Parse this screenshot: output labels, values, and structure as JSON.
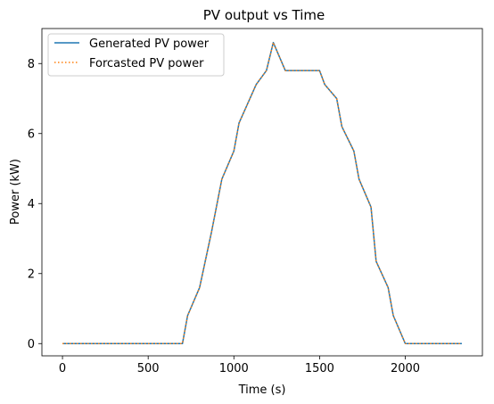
{
  "chart_data": {
    "type": "line",
    "title": "PV output vs Time",
    "xlabel": "Time (s)",
    "ylabel": "Power (kW)",
    "xlim": [
      -120,
      2450
    ],
    "ylim": [
      -0.35,
      9.0
    ],
    "xticks": [
      0,
      500,
      1000,
      1500,
      2000
    ],
    "yticks": [
      0,
      2,
      4,
      6,
      8
    ],
    "grid": false,
    "legend": "top-left",
    "series": [
      {
        "name": "Generated PV power",
        "color": "#1f77b4",
        "style": "solid",
        "x": [
          0,
          100,
          200,
          300,
          400,
          500,
          600,
          700,
          730,
          800,
          870,
          930,
          1000,
          1030,
          1130,
          1190,
          1230,
          1300,
          1400,
          1500,
          1530,
          1600,
          1630,
          1700,
          1730,
          1800,
          1830,
          1900,
          1930,
          2000,
          2100,
          2200,
          2330
        ],
        "y": [
          0,
          0,
          0,
          0,
          0,
          0,
          0,
          0,
          0.8,
          1.6,
          3.2,
          4.7,
          5.5,
          6.3,
          7.4,
          7.8,
          8.6,
          7.8,
          7.8,
          7.8,
          7.4,
          7.0,
          6.2,
          5.5,
          4.7,
          3.9,
          2.35,
          1.6,
          0.8,
          0,
          0,
          0,
          0
        ]
      },
      {
        "name": "Forcasted PV power",
        "color": "#ff7f0e",
        "style": "dotted",
        "x": [
          0,
          100,
          200,
          300,
          400,
          500,
          600,
          700,
          730,
          800,
          870,
          930,
          1000,
          1030,
          1130,
          1190,
          1230,
          1300,
          1400,
          1500,
          1530,
          1600,
          1630,
          1700,
          1730,
          1800,
          1830,
          1900,
          1930,
          2000,
          2100,
          2200,
          2330
        ],
        "y": [
          0,
          0,
          0,
          0,
          0,
          0,
          0,
          0,
          0.8,
          1.6,
          3.2,
          4.7,
          5.5,
          6.3,
          7.4,
          7.8,
          8.6,
          7.8,
          7.8,
          7.8,
          7.4,
          7.0,
          6.2,
          5.5,
          4.7,
          3.9,
          2.35,
          1.6,
          0.8,
          0,
          0,
          0,
          0
        ]
      }
    ]
  }
}
